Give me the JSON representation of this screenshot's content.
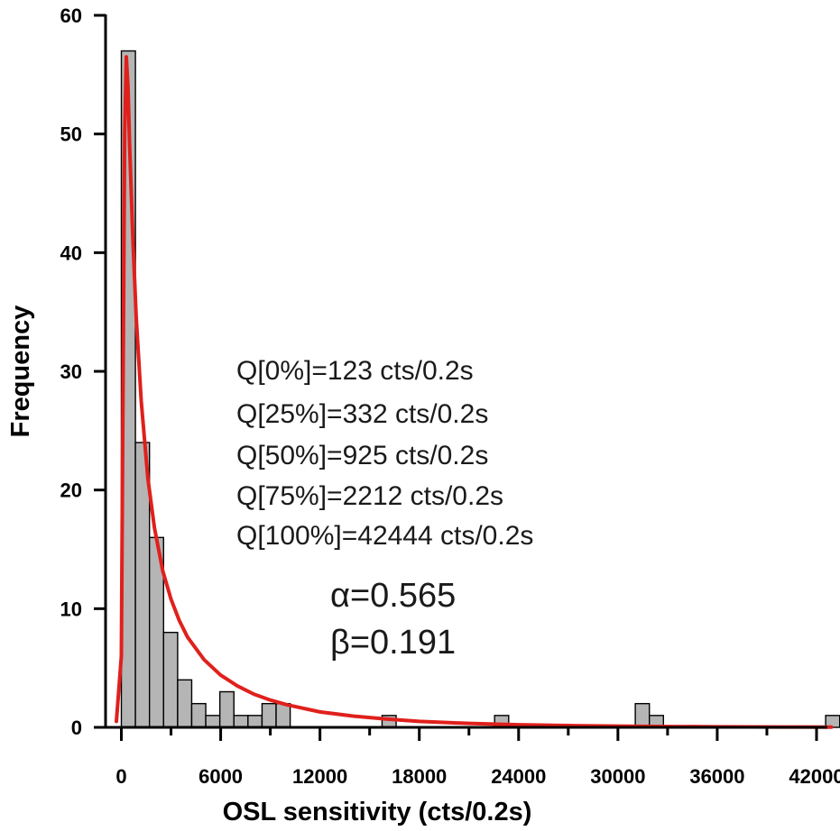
{
  "chart_data": {
    "type": "bar",
    "xlabel": "OSL sensitivity (cts/0.2s)",
    "ylabel": "Frequency",
    "xlim": [
      -1000,
      43500
    ],
    "ylim": [
      0,
      60
    ],
    "x_ticks": [
      0,
      6000,
      12000,
      18000,
      24000,
      30000,
      36000,
      42000
    ],
    "x_tick_labels": [
      "0",
      "6000",
      "12000",
      "18000",
      "24000",
      "30000",
      "36000",
      "42000"
    ],
    "y_ticks": [
      0,
      10,
      20,
      30,
      40,
      50,
      60
    ],
    "y_tick_labels": [
      "0",
      "10",
      "20",
      "30",
      "40",
      "50",
      "60"
    ],
    "bin_width": 850,
    "bins": [
      {
        "x": 0,
        "count": 57
      },
      {
        "x": 850,
        "count": 24
      },
      {
        "x": 1700,
        "count": 16
      },
      {
        "x": 2550,
        "count": 8
      },
      {
        "x": 3400,
        "count": 4
      },
      {
        "x": 4250,
        "count": 2
      },
      {
        "x": 5100,
        "count": 1
      },
      {
        "x": 5950,
        "count": 3
      },
      {
        "x": 6800,
        "count": 1
      },
      {
        "x": 7650,
        "count": 1
      },
      {
        "x": 8500,
        "count": 2
      },
      {
        "x": 9350,
        "count": 2
      },
      {
        "x": 15750,
        "count": 1
      },
      {
        "x": 22550,
        "count": 1
      },
      {
        "x": 31050,
        "count": 2
      },
      {
        "x": 31900,
        "count": 1
      },
      {
        "x": 42550,
        "count": 1
      }
    ],
    "fit_curve": {
      "color": "#e0201c",
      "x": [
        -300,
        0,
        100,
        200,
        300,
        400,
        500,
        700,
        900,
        1200,
        1600,
        2000,
        2500,
        3000,
        3500,
        4000,
        5000,
        6000,
        7000,
        8000,
        9000,
        10000,
        12000,
        14000,
        16000,
        18000,
        21000,
        24000,
        27000,
        30000,
        33000,
        36000,
        40000,
        42900
      ],
      "y": [
        0.5,
        6,
        28,
        50,
        56.5,
        54,
        49,
        41,
        34.5,
        27.5,
        21,
        16.8,
        13.2,
        10.8,
        9,
        7.6,
        5.7,
        4.4,
        3.5,
        2.8,
        2.3,
        1.9,
        1.3,
        0.95,
        0.7,
        0.5,
        0.33,
        0.22,
        0.15,
        0.1,
        0.07,
        0.05,
        0.03,
        0.02
      ]
    },
    "annotations": [
      "Q[0%]=123 cts/0.2s",
      "Q[25%]=332 cts/0.2s",
      "Q[50%]=925 cts/0.2s",
      "Q[75%]=2212 cts/0.2s",
      "Q[100%]=42444 cts/0.2s"
    ],
    "parameters": [
      "α=0.565",
      "β=0.191"
    ],
    "grid": false,
    "legend": "none"
  },
  "colors": {
    "bar_fill": "#b5b5b5",
    "fit_line": "#e0201c",
    "axis": "#000000"
  }
}
